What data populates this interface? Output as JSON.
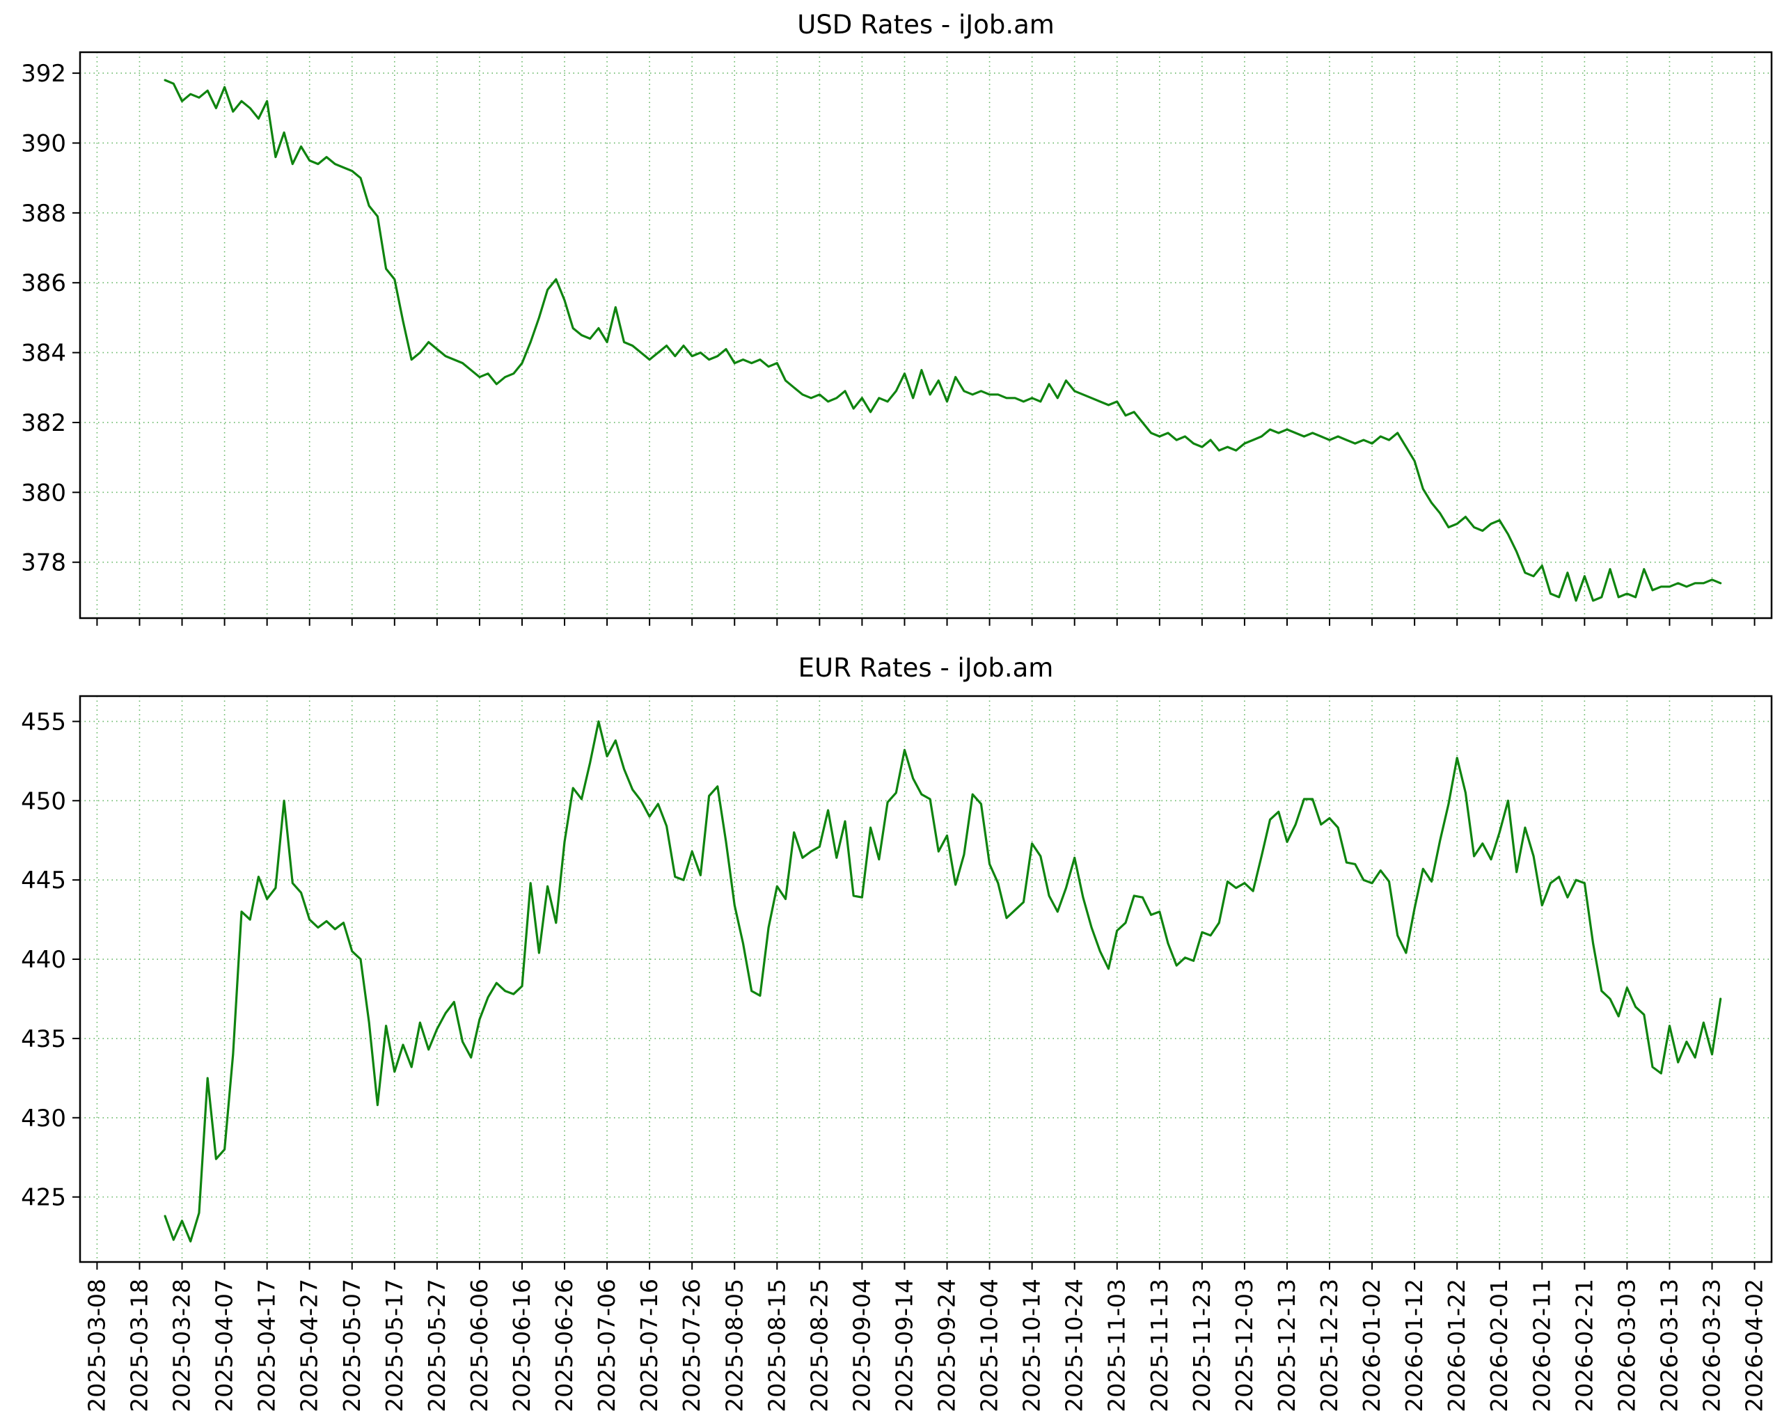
{
  "chart_data": {
    "x_axis": {
      "range": [
        "2025-03-04",
        "2026-04-06"
      ],
      "tick_interval_days": 10,
      "tick_labels": [
        "2025-03-08",
        "2025-03-18",
        "2025-03-28",
        "2025-04-07",
        "2025-04-17",
        "2025-04-27",
        "2025-05-07",
        "2025-05-17",
        "2025-05-27",
        "2025-06-06",
        "2025-06-16",
        "2025-06-26",
        "2025-07-06",
        "2025-07-16",
        "2025-07-26",
        "2025-08-05",
        "2025-08-15",
        "2025-08-25",
        "2025-09-04",
        "2025-09-14",
        "2025-09-24",
        "2025-10-04",
        "2025-10-14",
        "2025-10-24",
        "2025-11-03",
        "2025-11-13",
        "2025-11-23",
        "2025-12-03",
        "2025-12-13",
        "2025-12-23",
        "2026-01-02",
        "2026-01-12",
        "2026-01-22",
        "2026-02-01",
        "2026-02-11",
        "2026-02-21",
        "2026-03-03",
        "2026-03-13",
        "2026-03-23",
        "2026-04-02"
      ]
    },
    "charts": [
      {
        "name": "usd",
        "type": "line",
        "title": "USD Rates - iJob.am",
        "line_color": "#0f840f",
        "grid_color": "#46a846",
        "ylim": [
          376.4,
          392.6
        ],
        "y_ticks": [
          378,
          380,
          382,
          384,
          386,
          388,
          390,
          392
        ],
        "grid": true,
        "legend": false,
        "series": [
          {
            "name": "usd-rate",
            "start_date": "2025-03-24",
            "step_days": 2,
            "values": [
              391.8,
              391.7,
              391.2,
              391.4,
              391.3,
              391.5,
              391.0,
              391.6,
              390.9,
              391.2,
              391.0,
              390.7,
              391.2,
              389.6,
              390.3,
              389.4,
              389.9,
              389.5,
              389.4,
              389.6,
              389.4,
              389.3,
              389.2,
              389.0,
              388.2,
              387.9,
              386.4,
              386.1,
              384.9,
              383.8,
              384.0,
              384.3,
              384.1,
              383.9,
              383.8,
              383.7,
              383.5,
              383.3,
              383.4,
              383.1,
              383.3,
              383.4,
              383.7,
              384.3,
              385.0,
              385.8,
              386.1,
              385.5,
              384.7,
              384.5,
              384.4,
              384.7,
              384.3,
              385.3,
              384.3,
              384.2,
              384.0,
              383.8,
              384.0,
              384.2,
              383.9,
              384.2,
              383.9,
              384.0,
              383.8,
              383.9,
              384.1,
              383.7,
              383.8,
              383.7,
              383.8,
              383.6,
              383.7,
              383.2,
              383.0,
              382.8,
              382.7,
              382.8,
              382.6,
              382.7,
              382.9,
              382.4,
              382.7,
              382.3,
              382.7,
              382.6,
              382.9,
              383.4,
              382.7,
              383.5,
              382.8,
              383.2,
              382.6,
              383.3,
              382.9,
              382.8,
              382.9,
              382.8,
              382.8,
              382.7,
              382.7,
              382.6,
              382.7,
              382.6,
              383.1,
              382.7,
              383.2,
              382.9,
              382.8,
              382.7,
              382.6,
              382.5,
              382.6,
              382.2,
              382.3,
              382.0,
              381.7,
              381.6,
              381.7,
              381.5,
              381.6,
              381.4,
              381.3,
              381.5,
              381.2,
              381.3,
              381.2,
              381.4,
              381.5,
              381.6,
              381.8,
              381.7,
              381.8,
              381.7,
              381.6,
              381.7,
              381.6,
              381.5,
              381.6,
              381.5,
              381.4,
              381.5,
              381.4,
              381.6,
              381.5,
              381.7,
              381.3,
              380.9,
              380.1,
              379.7,
              379.4,
              379.0,
              379.1,
              379.3,
              379.0,
              378.9,
              379.1,
              379.2,
              378.8,
              378.3,
              377.7,
              377.6,
              377.9,
              377.1,
              377.0,
              377.7,
              376.9,
              377.6,
              376.9,
              377.0,
              377.8,
              377.0,
              377.1,
              377.0,
              377.8,
              377.2,
              377.3,
              377.3,
              377.4,
              377.3,
              377.4,
              377.4,
              377.5,
              377.4
            ]
          }
        ]
      },
      {
        "name": "eur",
        "type": "line",
        "title": "EUR Rates - iJob.am",
        "line_color": "#0f840f",
        "grid_color": "#46a846",
        "ylim": [
          420.9,
          456.6
        ],
        "y_ticks": [
          425,
          430,
          435,
          440,
          445,
          450,
          455
        ],
        "grid": true,
        "legend": false,
        "series": [
          {
            "name": "eur-rate",
            "start_date": "2025-03-24",
            "step_days": 2,
            "values": [
              423.8,
              422.3,
              423.5,
              422.2,
              424.0,
              432.5,
              427.4,
              428.0,
              434.0,
              443.0,
              442.5,
              445.2,
              443.8,
              444.5,
              450.0,
              444.8,
              444.2,
              442.5,
              442.0,
              442.4,
              441.9,
              442.3,
              440.5,
              440.0,
              436.0,
              430.8,
              435.8,
              432.9,
              434.6,
              433.2,
              436.0,
              434.3,
              435.6,
              436.6,
              437.3,
              434.8,
              433.8,
              436.2,
              437.6,
              438.5,
              438.0,
              437.8,
              438.3,
              444.8,
              440.4,
              444.6,
              442.3,
              447.4,
              450.8,
              450.1,
              452.4,
              455.0,
              452.8,
              453.8,
              452.0,
              450.7,
              450.0,
              449.0,
              449.8,
              448.4,
              445.2,
              445.0,
              446.8,
              445.3,
              450.3,
              450.9,
              447.4,
              443.4,
              441.0,
              438.0,
              437.7,
              442.0,
              444.6,
              443.8,
              448.0,
              446.4,
              446.8,
              447.1,
              449.4,
              446.4,
              448.7,
              444.0,
              443.9,
              448.3,
              446.3,
              449.9,
              450.5,
              453.2,
              451.4,
              450.4,
              450.1,
              446.8,
              447.8,
              444.7,
              446.6,
              450.4,
              449.8,
              446.0,
              444.8,
              442.6,
              443.1,
              443.6,
              447.3,
              446.5,
              444.0,
              443.0,
              444.5,
              446.4,
              443.9,
              442.0,
              440.5,
              439.4,
              441.8,
              442.3,
              444.0,
              443.9,
              442.8,
              443.0,
              441.0,
              439.6,
              440.1,
              439.9,
              441.7,
              441.5,
              442.3,
              444.9,
              444.5,
              444.8,
              444.3,
              446.5,
              448.8,
              449.3,
              447.4,
              448.5,
              450.1,
              450.1,
              448.5,
              448.9,
              448.3,
              446.1,
              446.0,
              445.0,
              444.8,
              445.6,
              444.9,
              441.5,
              440.4,
              443.2,
              445.7,
              444.9,
              447.5,
              449.8,
              452.7,
              450.5,
              446.5,
              447.3,
              446.3,
              448.0,
              450.0,
              445.5,
              448.3,
              446.5,
              443.4,
              444.8,
              445.2,
              443.9,
              445.0,
              444.8,
              441.0,
              438.0,
              437.5,
              436.4,
              438.2,
              437.0,
              436.5,
              433.2,
              432.8,
              435.8,
              433.5,
              434.8,
              433.8,
              436.0,
              434.0,
              437.5
            ]
          }
        ]
      }
    ]
  }
}
